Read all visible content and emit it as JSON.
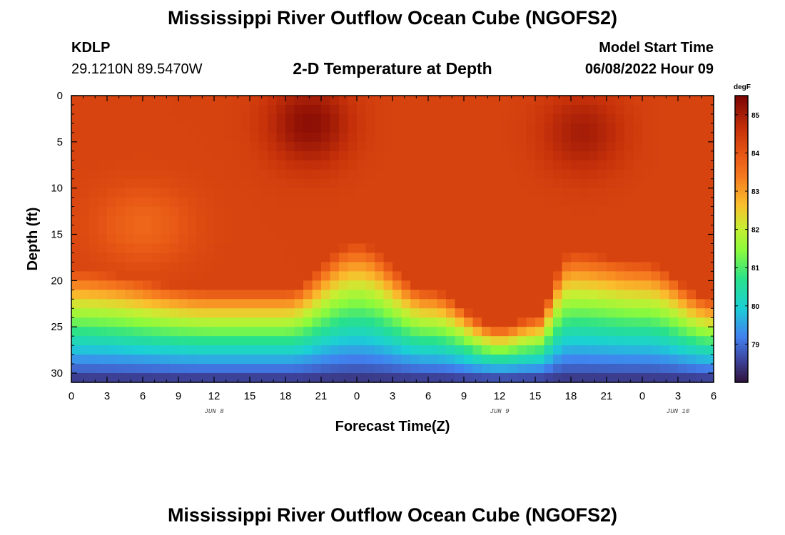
{
  "header": {
    "title": "Mississippi River Outflow Ocean Cube (NGOFS2)",
    "station": "KDLP",
    "coords": "29.1210N  89.5470W",
    "subtitle": "2-D Temperature at Depth",
    "model_start_label": "Model Start Time",
    "model_start_value": "06/08/2022 Hour 09"
  },
  "footer": {
    "title": "Mississippi River Outflow Ocean Cube (NGOFS2)"
  },
  "chart_data": {
    "type": "heatmap",
    "title": "2-D Temperature at Depth",
    "xlabel": "Forecast Time(Z)",
    "ylabel": "Depth (ft)",
    "x_range_hours": [
      0,
      54
    ],
    "ylim": [
      0,
      31
    ],
    "y_inverted": true,
    "x_tick_labels": [
      "0",
      "3",
      "6",
      "9",
      "12",
      "15",
      "18",
      "21",
      "0",
      "3",
      "6",
      "9",
      "12",
      "15",
      "18",
      "21",
      "0",
      "3",
      "6"
    ],
    "y_ticks": [
      0,
      5,
      10,
      15,
      20,
      25,
      30
    ],
    "date_labels": [
      {
        "label": "JUN 8",
        "hour": 12
      },
      {
        "label": "JUN 9",
        "hour": 36
      },
      {
        "label": "JUN 10",
        "hour": 51
      }
    ],
    "colorbar": {
      "unit": "degF",
      "min": 78.0,
      "max": 85.5,
      "ticks": [
        79,
        80,
        81,
        82,
        83,
        84,
        85
      ]
    },
    "field_description": {
      "surface_temp_degF": 84.3,
      "warm_cores": [
        {
          "hour": 20,
          "depth_ft": 3,
          "temp_degF": 85.3
        },
        {
          "hour": 43,
          "depth_ft": 4,
          "temp_degF": 85.0
        }
      ],
      "thermocline_depth_ft": [
        {
          "hour": 0,
          "depth": 21
        },
        {
          "hour": 12,
          "depth": 23
        },
        {
          "hour": 18,
          "depth": 23
        },
        {
          "hour": 24,
          "depth": 18
        },
        {
          "hour": 30,
          "depth": 23
        },
        {
          "hour": 36,
          "depth": 27
        },
        {
          "hour": 39,
          "depth": 26
        },
        {
          "hour": 42,
          "depth": 19
        },
        {
          "hour": 48,
          "depth": 20
        },
        {
          "hour": 54,
          "depth": 24
        }
      ],
      "bottom_temp_degF": 78.3
    }
  }
}
